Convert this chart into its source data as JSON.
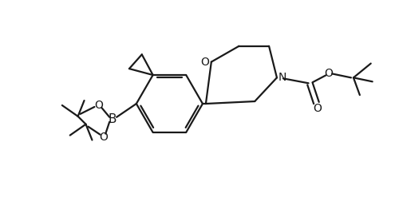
{
  "bg_color": "#ffffff",
  "line_color": "#1a1a1a",
  "line_width": 1.6,
  "figsize": [
    5.0,
    2.62
  ],
  "dpi": 100,
  "xlim": [
    0,
    500
  ],
  "ylim": [
    0,
    262
  ]
}
